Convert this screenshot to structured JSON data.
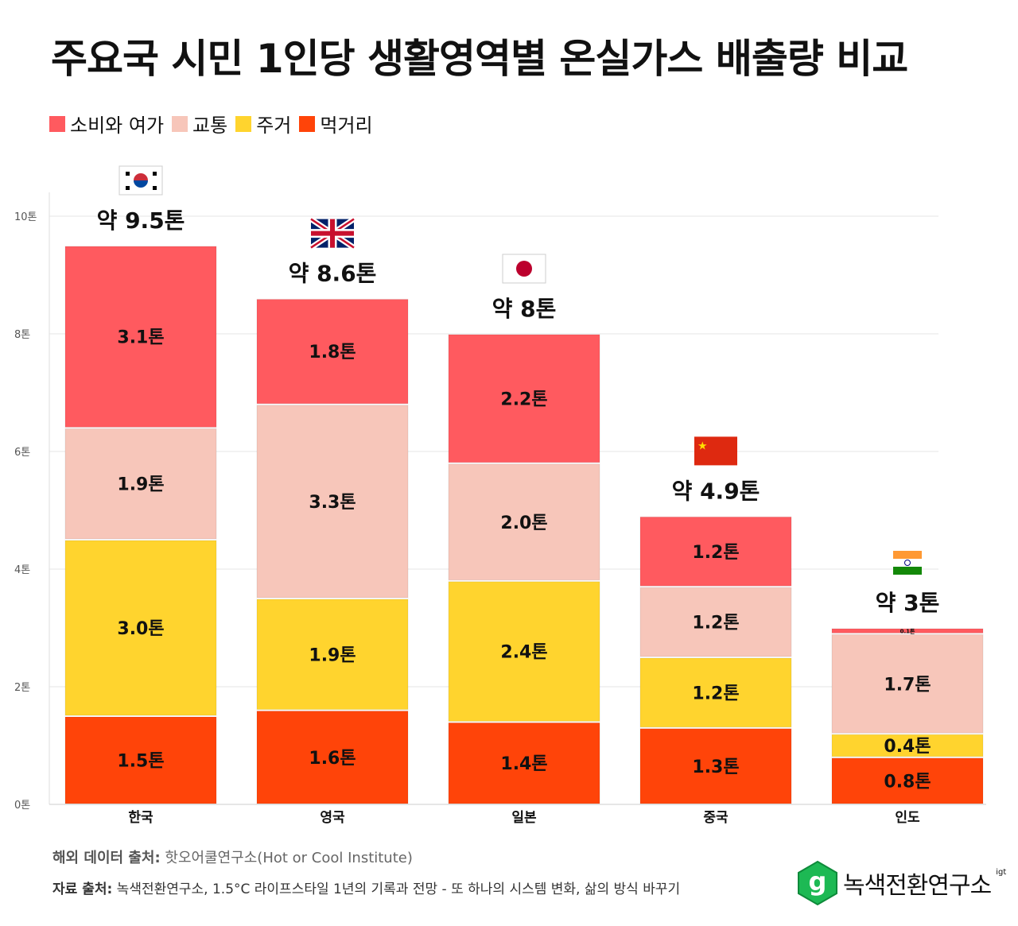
{
  "title": "주요국 시민 1인당 생활영역별 온실가스 배출량 비교",
  "legend": [
    {
      "label": "소비와 여가",
      "color": "#FF5A5F"
    },
    {
      "label": "교통",
      "color": "#F7C6BA"
    },
    {
      "label": "주거",
      "color": "#FFD42E"
    },
    {
      "label": "먹거리",
      "color": "#FF4409"
    }
  ],
  "chart_data": {
    "type": "bar",
    "stacked": true,
    "categories": [
      "한국",
      "영국",
      "일본",
      "중국",
      "인도"
    ],
    "flags": [
      "korea-flag",
      "uk-flag",
      "japan-flag",
      "china-flag",
      "india-flag"
    ],
    "totals": [
      "약 9.5톤",
      "약 8.6톤",
      "약 8톤",
      "약 4.9톤",
      "약 3톤"
    ],
    "series": [
      {
        "name": "먹거리",
        "color": "#FF4409",
        "values": [
          1.5,
          1.6,
          1.4,
          1.3,
          0.8
        ],
        "labels": [
          "1.5톤",
          "1.6톤",
          "1.4톤",
          "1.3톤",
          "0.8톤"
        ]
      },
      {
        "name": "주거",
        "color": "#FFD42E",
        "values": [
          3.0,
          1.9,
          2.4,
          1.2,
          0.4
        ],
        "labels": [
          "3.0톤",
          "1.9톤",
          "2.4톤",
          "1.2톤",
          "0.4톤"
        ]
      },
      {
        "name": "교통",
        "color": "#F7C6BA",
        "values": [
          1.9,
          3.3,
          2.0,
          1.2,
          1.7
        ],
        "labels": [
          "1.9톤",
          "3.3톤",
          "2.0톤",
          "1.2톤",
          "1.7톤"
        ]
      },
      {
        "name": "소비와 여가",
        "color": "#FF5A5F",
        "values": [
          3.1,
          1.8,
          2.2,
          1.2,
          0.1
        ],
        "labels": [
          "3.1톤",
          "1.8톤",
          "2.2톤",
          "1.2톤",
          "0.1톤"
        ]
      }
    ],
    "ylim": [
      0,
      10
    ],
    "yticks": [
      0,
      2,
      4,
      6,
      8,
      10
    ],
    "ytick_labels": [
      "0톤",
      "2톤",
      "4톤",
      "6톤",
      "8톤",
      "10톤"
    ],
    "grid": true
  },
  "footer": {
    "source1_label": "해외 데이터 출처:",
    "source1_text": " 핫오어쿨연구소(Hot or Cool Institute)",
    "source2_label": "자료 출처:",
    "source2_text": " 녹색전환연구소, 1.5°C 라이프스타일 1년의 기록과 전망 - 또 하나의 시스템 변화, 삶의 방식 바꾸기"
  },
  "logo": {
    "text": "녹색전환연구소",
    "sup": "igt",
    "mark": "g",
    "color": "#1DB954"
  }
}
